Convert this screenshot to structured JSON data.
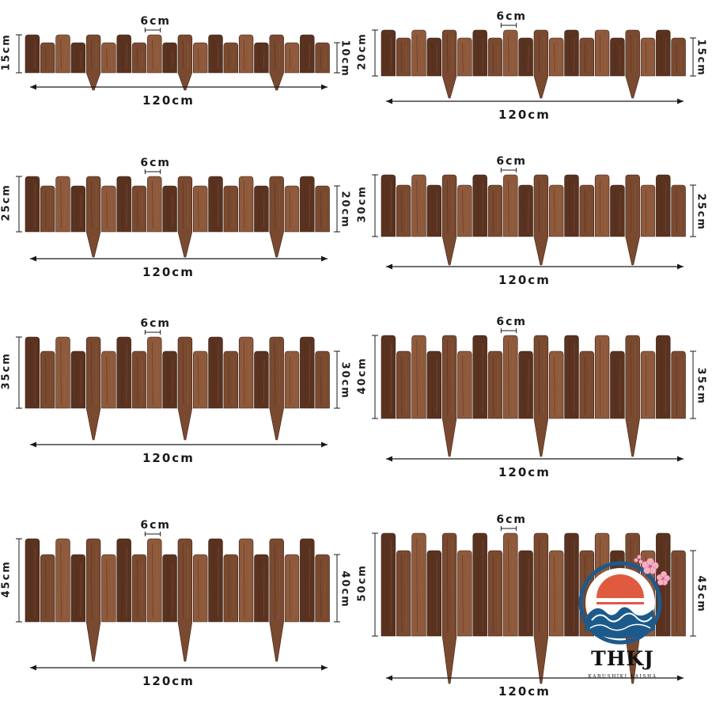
{
  "panels": [
    {
      "tall_label": "15cm",
      "short_label": "10cm",
      "slat_label": "6cm",
      "width_label": "120cm"
    },
    {
      "tall_label": "20cm",
      "short_label": "15cm",
      "slat_label": "6cm",
      "width_label": "120cm"
    },
    {
      "tall_label": "25cm",
      "short_label": "20cm",
      "slat_label": "6cm",
      "width_label": "120cm"
    },
    {
      "tall_label": "30cm",
      "short_label": "25cm",
      "slat_label": "6cm",
      "width_label": "120cm"
    },
    {
      "tall_label": "35cm",
      "short_label": "30cm",
      "slat_label": "6cm",
      "width_label": "120cm"
    },
    {
      "tall_label": "40cm",
      "short_label": "35cm",
      "slat_label": "6cm",
      "width_label": "120cm"
    },
    {
      "tall_label": "45cm",
      "short_label": "40cm",
      "slat_label": "6cm",
      "width_label": "120cm"
    },
    {
      "tall_label": "50cm",
      "short_label": "45cm",
      "slat_label": "6cm",
      "width_label": "120cm"
    }
  ],
  "logo": {
    "name": "THKJ",
    "subtitle": "KABUSHIKI KAISHA"
  },
  "colors": {
    "wood_dark": "#5a3220",
    "wood_mid": "#7a4a30",
    "wood_light": "#8f5a3c",
    "ink": "#1a1a1a",
    "logo_blue": "#1d5a8c",
    "logo_red": "#e05a40"
  }
}
